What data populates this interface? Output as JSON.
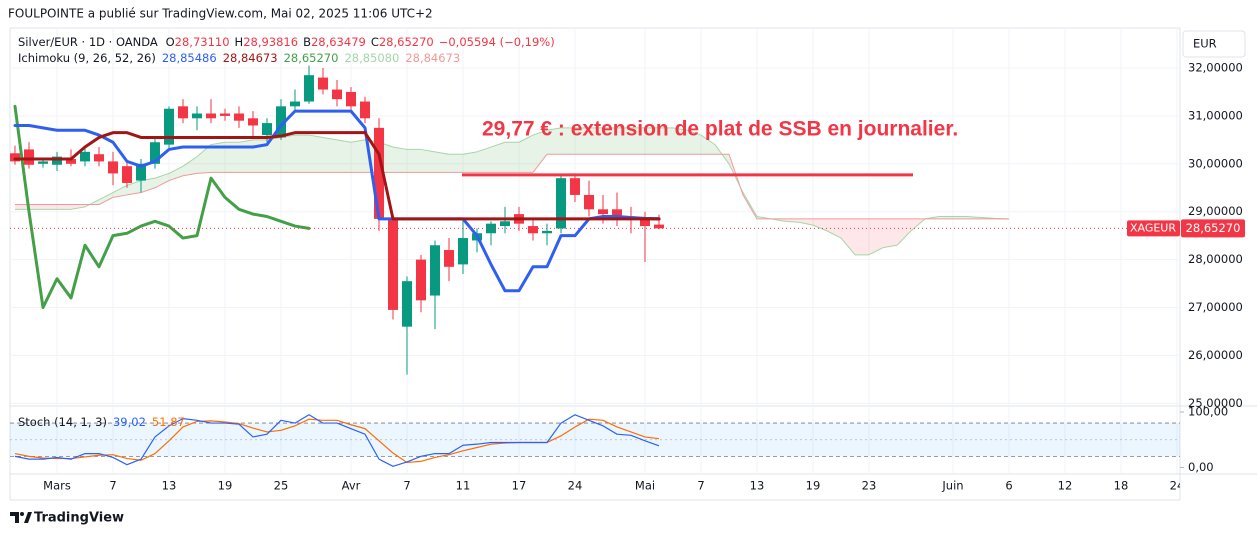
{
  "header": {
    "published": "FOULPOINTE a publié sur TradingView.com, Mai 02, 2025 11:06 UTC+2"
  },
  "currency": "EUR",
  "footer": "TradingView",
  "chart_data": [
    {
      "type": "candlestick",
      "title": "Silver/EUR · 1D · OANDA",
      "legend": [
        {
          "key": "O",
          "text": "28,73110"
        },
        {
          "key": "H",
          "text": "28,93816"
        },
        {
          "key": "B",
          "text": "28,63479"
        },
        {
          "key": "C",
          "text": "28,65270"
        }
      ],
      "change": "−0,05594 (−0,19%)",
      "indicator": "Ichimoku (9, 26, 52, 26)",
      "up_color": "#089981",
      "down_color": "#f23645",
      "categories": [
        null,
        null,
        null,
        "Mars",
        null,
        null,
        null,
        "7",
        null,
        null,
        null,
        "13",
        null,
        null,
        null,
        "19",
        null,
        null,
        null,
        "25",
        null,
        null,
        null,
        null,
        "Avr",
        null,
        null,
        null,
        "7",
        null,
        null,
        null,
        "11",
        null,
        null,
        null,
        "17",
        null,
        null,
        null,
        "24",
        null,
        null,
        null,
        null,
        "Mai",
        null,
        null,
        null,
        "7",
        null,
        null,
        null,
        "13",
        null,
        null,
        null,
        "19",
        null,
        null,
        null,
        "23",
        null,
        null,
        null,
        null,
        null,
        "Juin",
        null,
        null,
        null,
        "6",
        null,
        null,
        null,
        "12",
        null,
        null,
        null,
        "18",
        null,
        null,
        null,
        "24"
      ],
      "open": [
        30.22,
        30.3,
        30.0,
        29.98,
        30.1,
        30.05,
        30.2,
        30.05,
        29.95,
        29.65,
        30.0,
        30.4,
        31.2,
        30.95,
        31.05,
        31.05,
        31.05,
        30.95,
        30.6,
        30.55,
        31.2,
        31.3,
        31.8,
        31.55,
        31.5,
        31.3,
        30.75,
        28.85,
        26.6,
        28.0,
        27.25,
        28.2,
        27.9,
        28.4,
        28.55,
        28.7,
        28.95,
        28.7,
        28.55,
        28.65,
        29.7,
        29.35,
        29.05,
        29.05,
        28.9,
        28.85,
        28.7311,
        null,
        null,
        null,
        null,
        null,
        null,
        null,
        null,
        null,
        null,
        null,
        null,
        null,
        null,
        null,
        null,
        null,
        null,
        null,
        null,
        null,
        null,
        null,
        null,
        null,
        null,
        null,
        null,
        null,
        null,
        null,
        null,
        null,
        null,
        null,
        null,
        null
      ],
      "high": [
        30.38,
        30.45,
        30.12,
        30.25,
        30.3,
        30.35,
        30.35,
        30.25,
        30.05,
        30.1,
        30.55,
        31.2,
        31.35,
        31.2,
        31.35,
        31.15,
        31.2,
        31.1,
        30.95,
        31.35,
        31.55,
        32.05,
        32.0,
        31.75,
        31.6,
        31.4,
        30.95,
        28.95,
        27.65,
        28.1,
        28.4,
        28.45,
        28.85,
        28.65,
        28.8,
        29.1,
        29.1,
        28.85,
        28.75,
        29.75,
        29.8,
        29.65,
        29.35,
        29.4,
        29.1,
        29.0,
        28.93816,
        null,
        null,
        null,
        null,
        null,
        null,
        null,
        null,
        null,
        null,
        null,
        null,
        null,
        null,
        null,
        null,
        null,
        null,
        null,
        null,
        null,
        null,
        null,
        null,
        null,
        null,
        null,
        null,
        null,
        null,
        null,
        null,
        null,
        null,
        null,
        null,
        null
      ],
      "low": [
        29.98,
        29.9,
        29.92,
        29.85,
        29.95,
        29.95,
        29.95,
        29.55,
        29.5,
        29.4,
        29.9,
        30.3,
        30.85,
        30.7,
        30.85,
        30.9,
        30.75,
        30.55,
        30.45,
        30.5,
        31.1,
        31.25,
        31.45,
        31.2,
        31.05,
        30.85,
        28.6,
        26.75,
        25.6,
        26.9,
        26.55,
        27.55,
        27.7,
        28.15,
        28.3,
        28.55,
        28.6,
        28.4,
        28.3,
        28.55,
        29.2,
        28.9,
        28.75,
        28.7,
        28.55,
        27.95,
        28.63479,
        null,
        null,
        null,
        null,
        null,
        null,
        null,
        null,
        null,
        null,
        null,
        null,
        null,
        null,
        null,
        null,
        null,
        null,
        null,
        null,
        null,
        null,
        null,
        null,
        null,
        null,
        null,
        null,
        null,
        null,
        null,
        null,
        null,
        null,
        null,
        null,
        null
      ],
      "close": [
        30.05,
        29.98,
        30.05,
        30.15,
        30.0,
        30.25,
        30.05,
        29.8,
        29.6,
        30.0,
        30.45,
        31.15,
        30.95,
        31.05,
        30.95,
        31.0,
        30.9,
        30.8,
        30.85,
        31.2,
        31.3,
        31.85,
        31.55,
        31.35,
        31.2,
        30.95,
        28.85,
        26.95,
        27.55,
        27.15,
        28.3,
        27.85,
        28.45,
        28.55,
        28.75,
        28.8,
        28.75,
        28.55,
        28.6,
        29.7,
        29.35,
        29.05,
        28.95,
        28.9,
        28.85,
        28.7,
        28.6527,
        null,
        null,
        null,
        null,
        null,
        null,
        null,
        null,
        null,
        null,
        null,
        null,
        null,
        null,
        null,
        null,
        null,
        null,
        null,
        null,
        null,
        null,
        null,
        null,
        null,
        null,
        null,
        null,
        null,
        null,
        null,
        null,
        null,
        null,
        null,
        null,
        null
      ],
      "series": [
        {
          "color": "#2f5ff0",
          "width": 3,
          "last_label": "28,85486",
          "values": [
            30.8,
            30.8,
            30.75,
            30.7,
            30.7,
            30.7,
            30.6,
            30.45,
            30.05,
            29.95,
            30.05,
            30.3,
            30.35,
            30.35,
            30.35,
            30.35,
            30.35,
            30.35,
            30.4,
            30.8,
            31.1,
            31.1,
            31.1,
            31.1,
            31.1,
            30.75,
            28.85,
            28.85,
            28.85,
            28.85,
            28.85,
            28.85,
            28.85,
            28.5,
            27.9,
            27.35,
            27.35,
            27.85,
            27.85,
            28.5,
            28.5,
            28.85,
            28.9,
            28.9,
            28.88,
            28.86,
            28.85486,
            null,
            null,
            null,
            null,
            null,
            null,
            null,
            null,
            null,
            null,
            null,
            null,
            null,
            null,
            null,
            null,
            null,
            null,
            null,
            null,
            null,
            null,
            null,
            null,
            null,
            null,
            null,
            null,
            null,
            null,
            null,
            null,
            null,
            null,
            null,
            null,
            null
          ]
        },
        {
          "color": "#a31515",
          "width": 3,
          "last_label": "28,84673",
          "values": [
            30.1,
            30.1,
            30.1,
            30.1,
            30.1,
            30.35,
            30.55,
            30.65,
            30.65,
            30.55,
            30.55,
            30.55,
            30.55,
            30.55,
            30.55,
            30.55,
            30.55,
            30.55,
            30.55,
            30.58,
            30.65,
            30.65,
            30.65,
            30.65,
            30.65,
            30.65,
            30.2,
            28.85,
            28.85,
            28.85,
            28.85,
            28.85,
            28.85,
            28.85,
            28.85,
            28.85,
            28.85,
            28.85,
            28.85,
            28.85,
            28.85,
            28.85,
            28.85,
            28.85,
            28.85,
            28.85,
            28.84673,
            null,
            null,
            null,
            null,
            null,
            null,
            null,
            null,
            null,
            null,
            null,
            null,
            null,
            null,
            null,
            null,
            null,
            null,
            null,
            null,
            null,
            null,
            null,
            null,
            null,
            null,
            null,
            null,
            null,
            null,
            null,
            null,
            null,
            null,
            null,
            null,
            null
          ]
        },
        {
          "color": "#43a047",
          "width": 3,
          "last_label": "28,65270",
          "values": [
            31.2,
            29.0,
            27.0,
            27.6,
            27.2,
            28.3,
            27.85,
            28.5,
            28.55,
            28.7,
            28.8,
            28.7,
            28.45,
            28.5,
            29.7,
            29.3,
            29.05,
            28.95,
            28.9,
            28.8,
            28.7,
            28.6527,
            null,
            null,
            null,
            null,
            null,
            null,
            null,
            null,
            null,
            null,
            null,
            null,
            null,
            null,
            null,
            null,
            null,
            null,
            null,
            null,
            null,
            null,
            null,
            null,
            null,
            null,
            null,
            null,
            null,
            null,
            null,
            null,
            null,
            null,
            null,
            null,
            null,
            null,
            null,
            null,
            null,
            null,
            null,
            null,
            null,
            null,
            null,
            null,
            null,
            null,
            null,
            null,
            null,
            null,
            null,
            null,
            null,
            null,
            null,
            null,
            null,
            null
          ]
        },
        {
          "color": "#a5d6a7",
          "width": 1,
          "last_label": "28,85080",
          "values": [
            29.05,
            29.05,
            29.05,
            29.05,
            29.05,
            29.1,
            29.25,
            29.4,
            29.55,
            29.65,
            29.7,
            29.8,
            29.95,
            30.15,
            30.4,
            30.45,
            30.45,
            30.5,
            30.5,
            30.55,
            30.6,
            30.6,
            30.55,
            30.5,
            30.45,
            30.5,
            30.45,
            30.35,
            30.3,
            30.3,
            30.25,
            30.2,
            30.2,
            30.25,
            30.35,
            30.45,
            30.45,
            30.6,
            30.7,
            30.75,
            30.75,
            30.75,
            30.75,
            30.75,
            30.75,
            30.75,
            30.75,
            30.75,
            30.7,
            30.6,
            30.4,
            30.0,
            29.4,
            28.9,
            28.85,
            28.8,
            28.78,
            28.72,
            28.6,
            28.45,
            28.1,
            28.1,
            28.25,
            28.3,
            28.6,
            28.85,
            28.9,
            28.9,
            28.9,
            28.88,
            28.86,
            28.8508,
            null,
            null,
            null,
            null,
            null,
            null,
            null,
            null,
            null,
            null,
            null,
            null
          ]
        },
        {
          "color": "#ef9a9a",
          "width": 1,
          "last_label": "28,84673",
          "values": [
            29.15,
            29.15,
            29.15,
            29.15,
            29.15,
            29.15,
            29.15,
            29.3,
            29.35,
            29.4,
            29.5,
            29.65,
            29.75,
            29.8,
            29.82,
            29.82,
            29.82,
            29.82,
            29.82,
            29.82,
            29.82,
            29.82,
            29.82,
            29.82,
            29.82,
            29.82,
            29.82,
            29.82,
            29.82,
            29.82,
            29.82,
            29.82,
            29.82,
            29.82,
            29.82,
            29.82,
            29.82,
            29.82,
            30.2,
            30.2,
            30.2,
            30.2,
            30.2,
            30.2,
            30.2,
            30.2,
            30.2,
            30.2,
            30.2,
            30.2,
            30.2,
            30.2,
            29.35,
            28.85,
            28.85,
            28.85,
            28.85,
            28.85,
            28.85,
            28.85,
            28.85,
            28.85,
            28.85,
            28.85,
            28.85,
            28.85,
            28.85,
            28.85,
            28.85,
            28.85,
            28.85,
            28.84673,
            null,
            null,
            null,
            null,
            null,
            null,
            null,
            null,
            null,
            null,
            null,
            null
          ]
        }
      ],
      "ylim": [
        24.965,
        32.835
      ],
      "yticks": [
        {
          "value": 25,
          "label": "25,00000"
        },
        {
          "value": 26,
          "label": "26,00000"
        },
        {
          "value": 27,
          "label": "27,00000"
        },
        {
          "value": 28,
          "label": "28,00000"
        },
        {
          "value": 29,
          "label": "29,00000"
        },
        {
          "value": 30,
          "label": "30,00000"
        },
        {
          "value": 31,
          "label": "31,00000"
        },
        {
          "value": 32,
          "label": "32,00000"
        }
      ],
      "grid": true,
      "last_price": {
        "symbol": "XAGEUR",
        "label": "28,65270"
      },
      "annotation": {
        "text": "29,77 € : extension de plat de SSB en journalier.",
        "level": 29.77,
        "color": "#f23645"
      }
    },
    {
      "type": "line",
      "title": "Stoch (14, 1, 3)",
      "series": [
        {
          "color": "#2962ff",
          "last_label": "39,02",
          "values": [
            20,
            15,
            15,
            18,
            15,
            25,
            25,
            18,
            5,
            15,
            55,
            75,
            88,
            85,
            80,
            80,
            78,
            55,
            60,
            85,
            80,
            95,
            80,
            80,
            70,
            60,
            15,
            2,
            10,
            20,
            25,
            25,
            40,
            42,
            45,
            45,
            45,
            45,
            45,
            80,
            95,
            85,
            75,
            60,
            58,
            48,
            39.02,
            null,
            null,
            null,
            null,
            null,
            null,
            null,
            null,
            null,
            null,
            null,
            null,
            null,
            null,
            null,
            null,
            null,
            null,
            null,
            null,
            null,
            null,
            null,
            null,
            null,
            null,
            null,
            null,
            null,
            null,
            null,
            null,
            null,
            null,
            null,
            null,
            null
          ]
        },
        {
          "color": "#ff6d00",
          "last_label": "51,87",
          "values": [
            25,
            20,
            17,
            16,
            16,
            19,
            22,
            23,
            16,
            13,
            25,
            48,
            73,
            83,
            84,
            82,
            79,
            71,
            64,
            67,
            75,
            87,
            85,
            85,
            77,
            70,
            48,
            26,
            9,
            11,
            18,
            23,
            30,
            36,
            42,
            44,
            45,
            45,
            45,
            57,
            73,
            87,
            85,
            73,
            64,
            55,
            51.87,
            null,
            null,
            null,
            null,
            null,
            null,
            null,
            null,
            null,
            null,
            null,
            null,
            null,
            null,
            null,
            null,
            null,
            null,
            null,
            null,
            null,
            null,
            null,
            null,
            null,
            null,
            null,
            null,
            null,
            null,
            null,
            null,
            null,
            null,
            null,
            null,
            null
          ]
        }
      ],
      "ylim": [
        -10,
        109
      ],
      "yticks": [
        {
          "value": 100,
          "label": "100,00"
        },
        {
          "value": 0,
          "label": "0,00"
        }
      ],
      "band": [
        20,
        80
      ],
      "midline": 50
    }
  ]
}
